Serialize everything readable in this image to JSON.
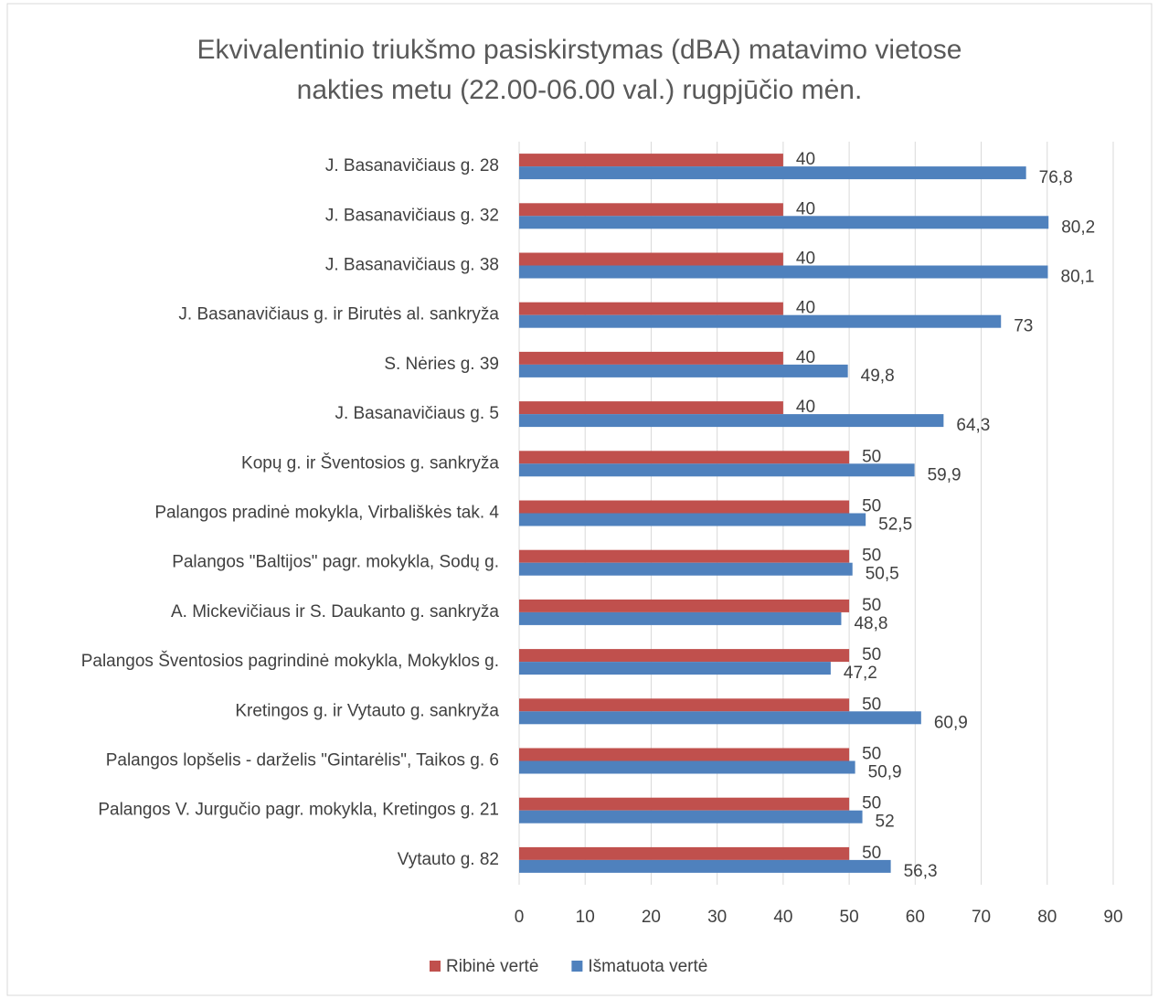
{
  "chart_data": {
    "type": "hbar",
    "title": [
      "Ekvivalentinio triukšmo pasiskirstymas (dBA) matavimo vietose",
      "nakties metu (22.00-06.00 val.) rugpjūčio mėn."
    ],
    "categories": [
      "J. Basanavičiaus g. 28",
      "J. Basanavičiaus g. 32",
      "J. Basanavičiaus g. 38",
      "J. Basanavičiaus g. ir Birutės al. sankryža",
      "S. Nėries g. 39",
      "J. Basanavičiaus g. 5",
      "Kopų g. ir Šventosios g. sankryža",
      "Palangos pradinė mokykla, Virbališkės tak. 4",
      "Palangos \"Baltijos\" pagr. mokykla, Sodų g.",
      "A. Mickevičiaus ir S. Daukanto g. sankryža",
      "Palangos Šventosios pagrindinė mokykla, Mokyklos g.",
      "Kretingos g. ir Vytauto g. sankryža",
      "Palangos lopšelis - darželis \"Gintarėlis\", Taikos g. 6",
      "Palangos V. Jurgučio pagr. mokykla, Kretingos g. 21",
      "Vytauto g. 82"
    ],
    "series": [
      {
        "name": "Ribinė vertė",
        "color": "#c0504d",
        "values": [
          40,
          40,
          40,
          40,
          40,
          40,
          50,
          50,
          50,
          50,
          50,
          50,
          50,
          50,
          50
        ]
      },
      {
        "name": "Išmatuota vertė",
        "color": "#4f81bd",
        "values": [
          76.8,
          80.2,
          80.1,
          73,
          49.8,
          64.3,
          59.9,
          52.5,
          50.5,
          48.8,
          47.2,
          60.9,
          50.9,
          52,
          56.3
        ],
        "value_labels": [
          "76,8",
          "80,2",
          "80,1",
          "73",
          "49,8",
          "64,3",
          "59,9",
          "52,5",
          "50,5",
          "48,8",
          "47,2",
          "60,9",
          "50,9",
          "52",
          "56,3"
        ]
      }
    ],
    "xlim": [
      0,
      90
    ],
    "xticks": [
      0,
      10,
      20,
      30,
      40,
      50,
      60,
      70,
      80,
      90
    ],
    "grid": true,
    "legend": "bottom"
  }
}
